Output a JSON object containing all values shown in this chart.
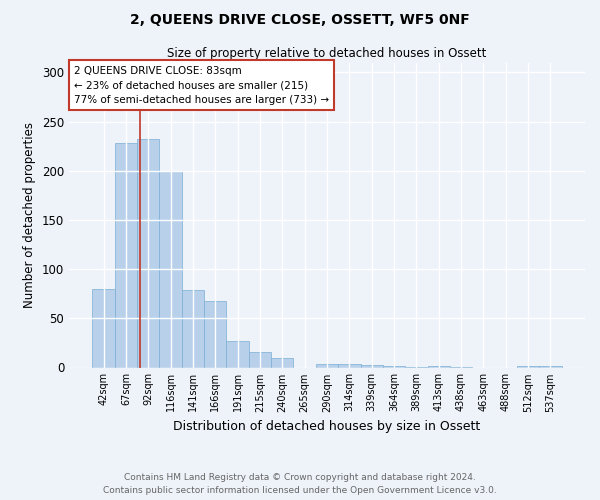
{
  "title": "2, QUEENS DRIVE CLOSE, OSSETT, WF5 0NF",
  "subtitle": "Size of property relative to detached houses in Ossett",
  "xlabel": "Distribution of detached houses by size in Ossett",
  "ylabel": "Number of detached properties",
  "categories": [
    "42sqm",
    "67sqm",
    "92sqm",
    "116sqm",
    "141sqm",
    "166sqm",
    "191sqm",
    "215sqm",
    "240sqm",
    "265sqm",
    "290sqm",
    "314sqm",
    "339sqm",
    "364sqm",
    "389sqm",
    "413sqm",
    "438sqm",
    "463sqm",
    "488sqm",
    "512sqm",
    "537sqm"
  ],
  "values": [
    80,
    228,
    232,
    200,
    79,
    68,
    27,
    16,
    10,
    0,
    4,
    4,
    3,
    2,
    1,
    2,
    1,
    0,
    0,
    2,
    2
  ],
  "bar_color": "#b8d0ea",
  "bar_edgecolor": "#7aadd4",
  "ylim": [
    0,
    310
  ],
  "yticks": [
    0,
    50,
    100,
    150,
    200,
    250,
    300
  ],
  "property_label": "2 QUEENS DRIVE CLOSE: 83sqm",
  "annotation_line1": "← 23% of detached houses are smaller (215)",
  "annotation_line2": "77% of semi-detached houses are larger (733) →",
  "vline_color": "#c0392b",
  "annotation_box_edgecolor": "#c0392b",
  "annotation_box_facecolor": "white",
  "footer_line1": "Contains HM Land Registry data © Crown copyright and database right 2024.",
  "footer_line2": "Contains public sector information licensed under the Open Government Licence v3.0.",
  "background_color": "#eef2f9",
  "grid_color": "white"
}
